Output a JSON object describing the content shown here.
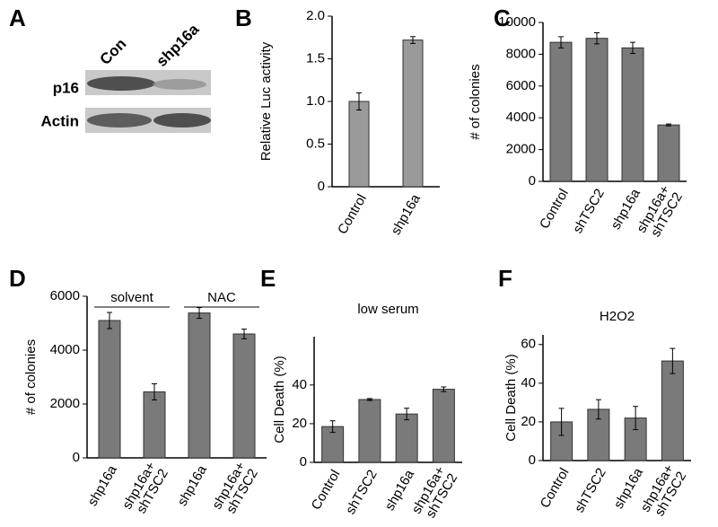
{
  "blot": {
    "panel": "A",
    "lanes": [
      "Con",
      "shp16a"
    ],
    "rows": [
      "p16",
      "Actin"
    ]
  },
  "chart_data": [
    {
      "type": "bar",
      "panel": "B",
      "ylabel": "Relative Luc activity",
      "color": "#9a9a9a",
      "categories": [
        "Control",
        "shp16a"
      ],
      "values": [
        1.0,
        1.72
      ],
      "errors": [
        0.1,
        0.04
      ],
      "ylim": [
        0,
        2
      ],
      "yticks": [
        0,
        0.5,
        {
          "value": 1,
          "label": "1.0"
        },
        1.5,
        {
          "value": 2,
          "label": "2.0"
        }
      ]
    },
    {
      "type": "bar",
      "panel": "C",
      "ylabel": "# of colonies",
      "color": "#7a7a7a",
      "categories": [
        "Control",
        "shTSC2",
        "shp16a",
        "shp16a+ shTSC2"
      ],
      "values": [
        8750,
        9000,
        8400,
        3550
      ],
      "errors": [
        350,
        350,
        350,
        60
      ],
      "ylim": [
        0,
        10000
      ],
      "yticks": [
        0,
        2000,
        4000,
        6000,
        8000,
        10000
      ]
    },
    {
      "type": "bar",
      "panel": "D",
      "ylabel": "# of colonies",
      "color": "#7a7a7a",
      "groups": [
        "solvent",
        "NAC"
      ],
      "categories": [
        "shp16a",
        "shp16a+ shTSC2",
        "shp16a",
        "shp16a+ shTSC2"
      ],
      "values": [
        5100,
        2450,
        5380,
        4600
      ],
      "errors": [
        300,
        300,
        200,
        180
      ],
      "ylim": [
        0,
        6000
      ],
      "yticks": [
        0,
        2000,
        4000,
        6000
      ]
    },
    {
      "type": "bar",
      "panel": "E",
      "title": "low serum",
      "ylabel": "Cell Death (%)",
      "color": "#7a7a7a",
      "categories": [
        "Control",
        "shTSC2",
        "shp16a",
        "shp16a+ shTSC2"
      ],
      "values": [
        18.5,
        32.5,
        25,
        37.8
      ],
      "errors": [
        3,
        0.5,
        3,
        1.2
      ],
      "ylim": [
        0,
        65
      ],
      "yticks": [
        0,
        20,
        40
      ]
    },
    {
      "type": "bar",
      "panel": "F",
      "title": "H2O2",
      "ylabel": "Cell Death (%)",
      "color": "#7a7a7a",
      "categories": [
        "Control",
        "shTSC2",
        "shp16a",
        "shp16a+ shTSC2"
      ],
      "values": [
        20,
        26.5,
        22,
        51.5
      ],
      "errors": [
        7,
        5,
        6,
        6.5
      ],
      "ylim": [
        0,
        65
      ],
      "yticks": [
        0,
        20,
        40,
        60
      ]
    }
  ]
}
